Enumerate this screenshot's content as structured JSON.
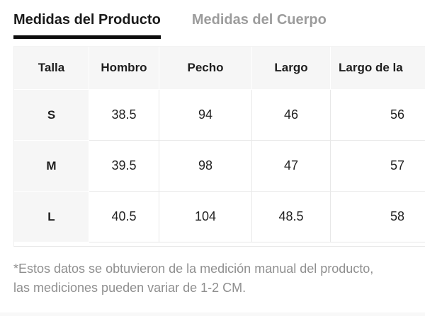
{
  "tabs": {
    "product": {
      "label": "Medidas del Producto",
      "active": true
    },
    "body": {
      "label": "Medidas del Cuerpo",
      "active": false
    }
  },
  "size_table": {
    "columns": [
      "Talla",
      "Hombro",
      "Pecho",
      "Largo",
      "Largo de la"
    ],
    "rows": [
      {
        "size": "S",
        "values": [
          "38.5",
          "94",
          "46",
          "56"
        ]
      },
      {
        "size": "M",
        "values": [
          "39.5",
          "98",
          "47",
          "57"
        ]
      },
      {
        "size": "L",
        "values": [
          "40.5",
          "104",
          "48.5",
          "58"
        ]
      }
    ]
  },
  "footnote": {
    "lines": [
      "*Estos datos se obtuvieron de la medición manual del producto,",
      "las mediciones pueden variar de 1-2 CM."
    ]
  },
  "colors": {
    "active_tab_text": "#1a1a1a",
    "tab_underline": "#0d0d0d",
    "inactive_tab_text": "#9c9c9c",
    "header_cell_bg": "#f6f6f6",
    "cell_border": "#e8e8e8",
    "footnote_text": "#8f8f8f"
  }
}
